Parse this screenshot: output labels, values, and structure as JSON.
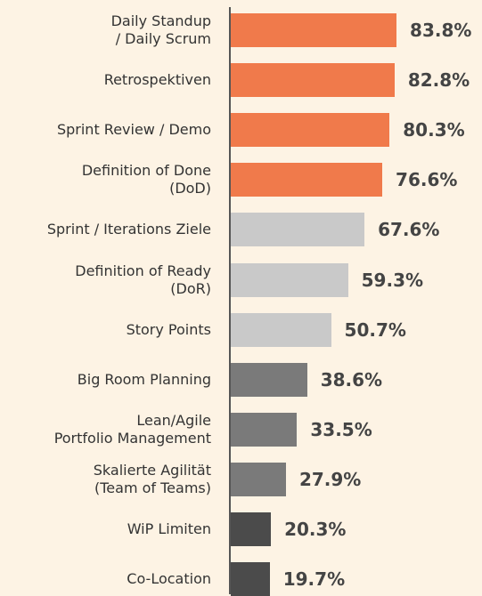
{
  "chart_data": {
    "type": "bar",
    "orientation": "horizontal",
    "categories": [
      "Daily Standup\n/ Daily Scrum",
      "Retrospektiven",
      "Sprint Review / Demo",
      "Definition of Done\n(DoD)",
      "Sprint / Iterations Ziele",
      "Definition of Ready\n(DoR)",
      "Story Points",
      "Big Room Planning",
      "Lean/Agile\nPortfolio Management",
      "Skalierte Agilität\n(Team of Teams)",
      "WiP Limiten",
      "Co-Location"
    ],
    "values": [
      83.8,
      82.8,
      80.3,
      76.6,
      67.6,
      59.3,
      50.7,
      38.6,
      33.5,
      27.9,
      20.3,
      19.7
    ],
    "value_labels": [
      "83.8%",
      "82.8%",
      "80.3%",
      "76.6%",
      "67.6%",
      "59.3%",
      "50.7%",
      "38.6%",
      "33.5%",
      "27.9%",
      "20.3%",
      "19.7%"
    ],
    "colors": [
      "#f07a4b",
      "#f07a4b",
      "#f07a4b",
      "#f07a4b",
      "#c9c9c9",
      "#c9c9c9",
      "#c9c9c9",
      "#7a7a7a",
      "#7a7a7a",
      "#7a7a7a",
      "#4b4b4b",
      "#4b4b4b"
    ]
  }
}
